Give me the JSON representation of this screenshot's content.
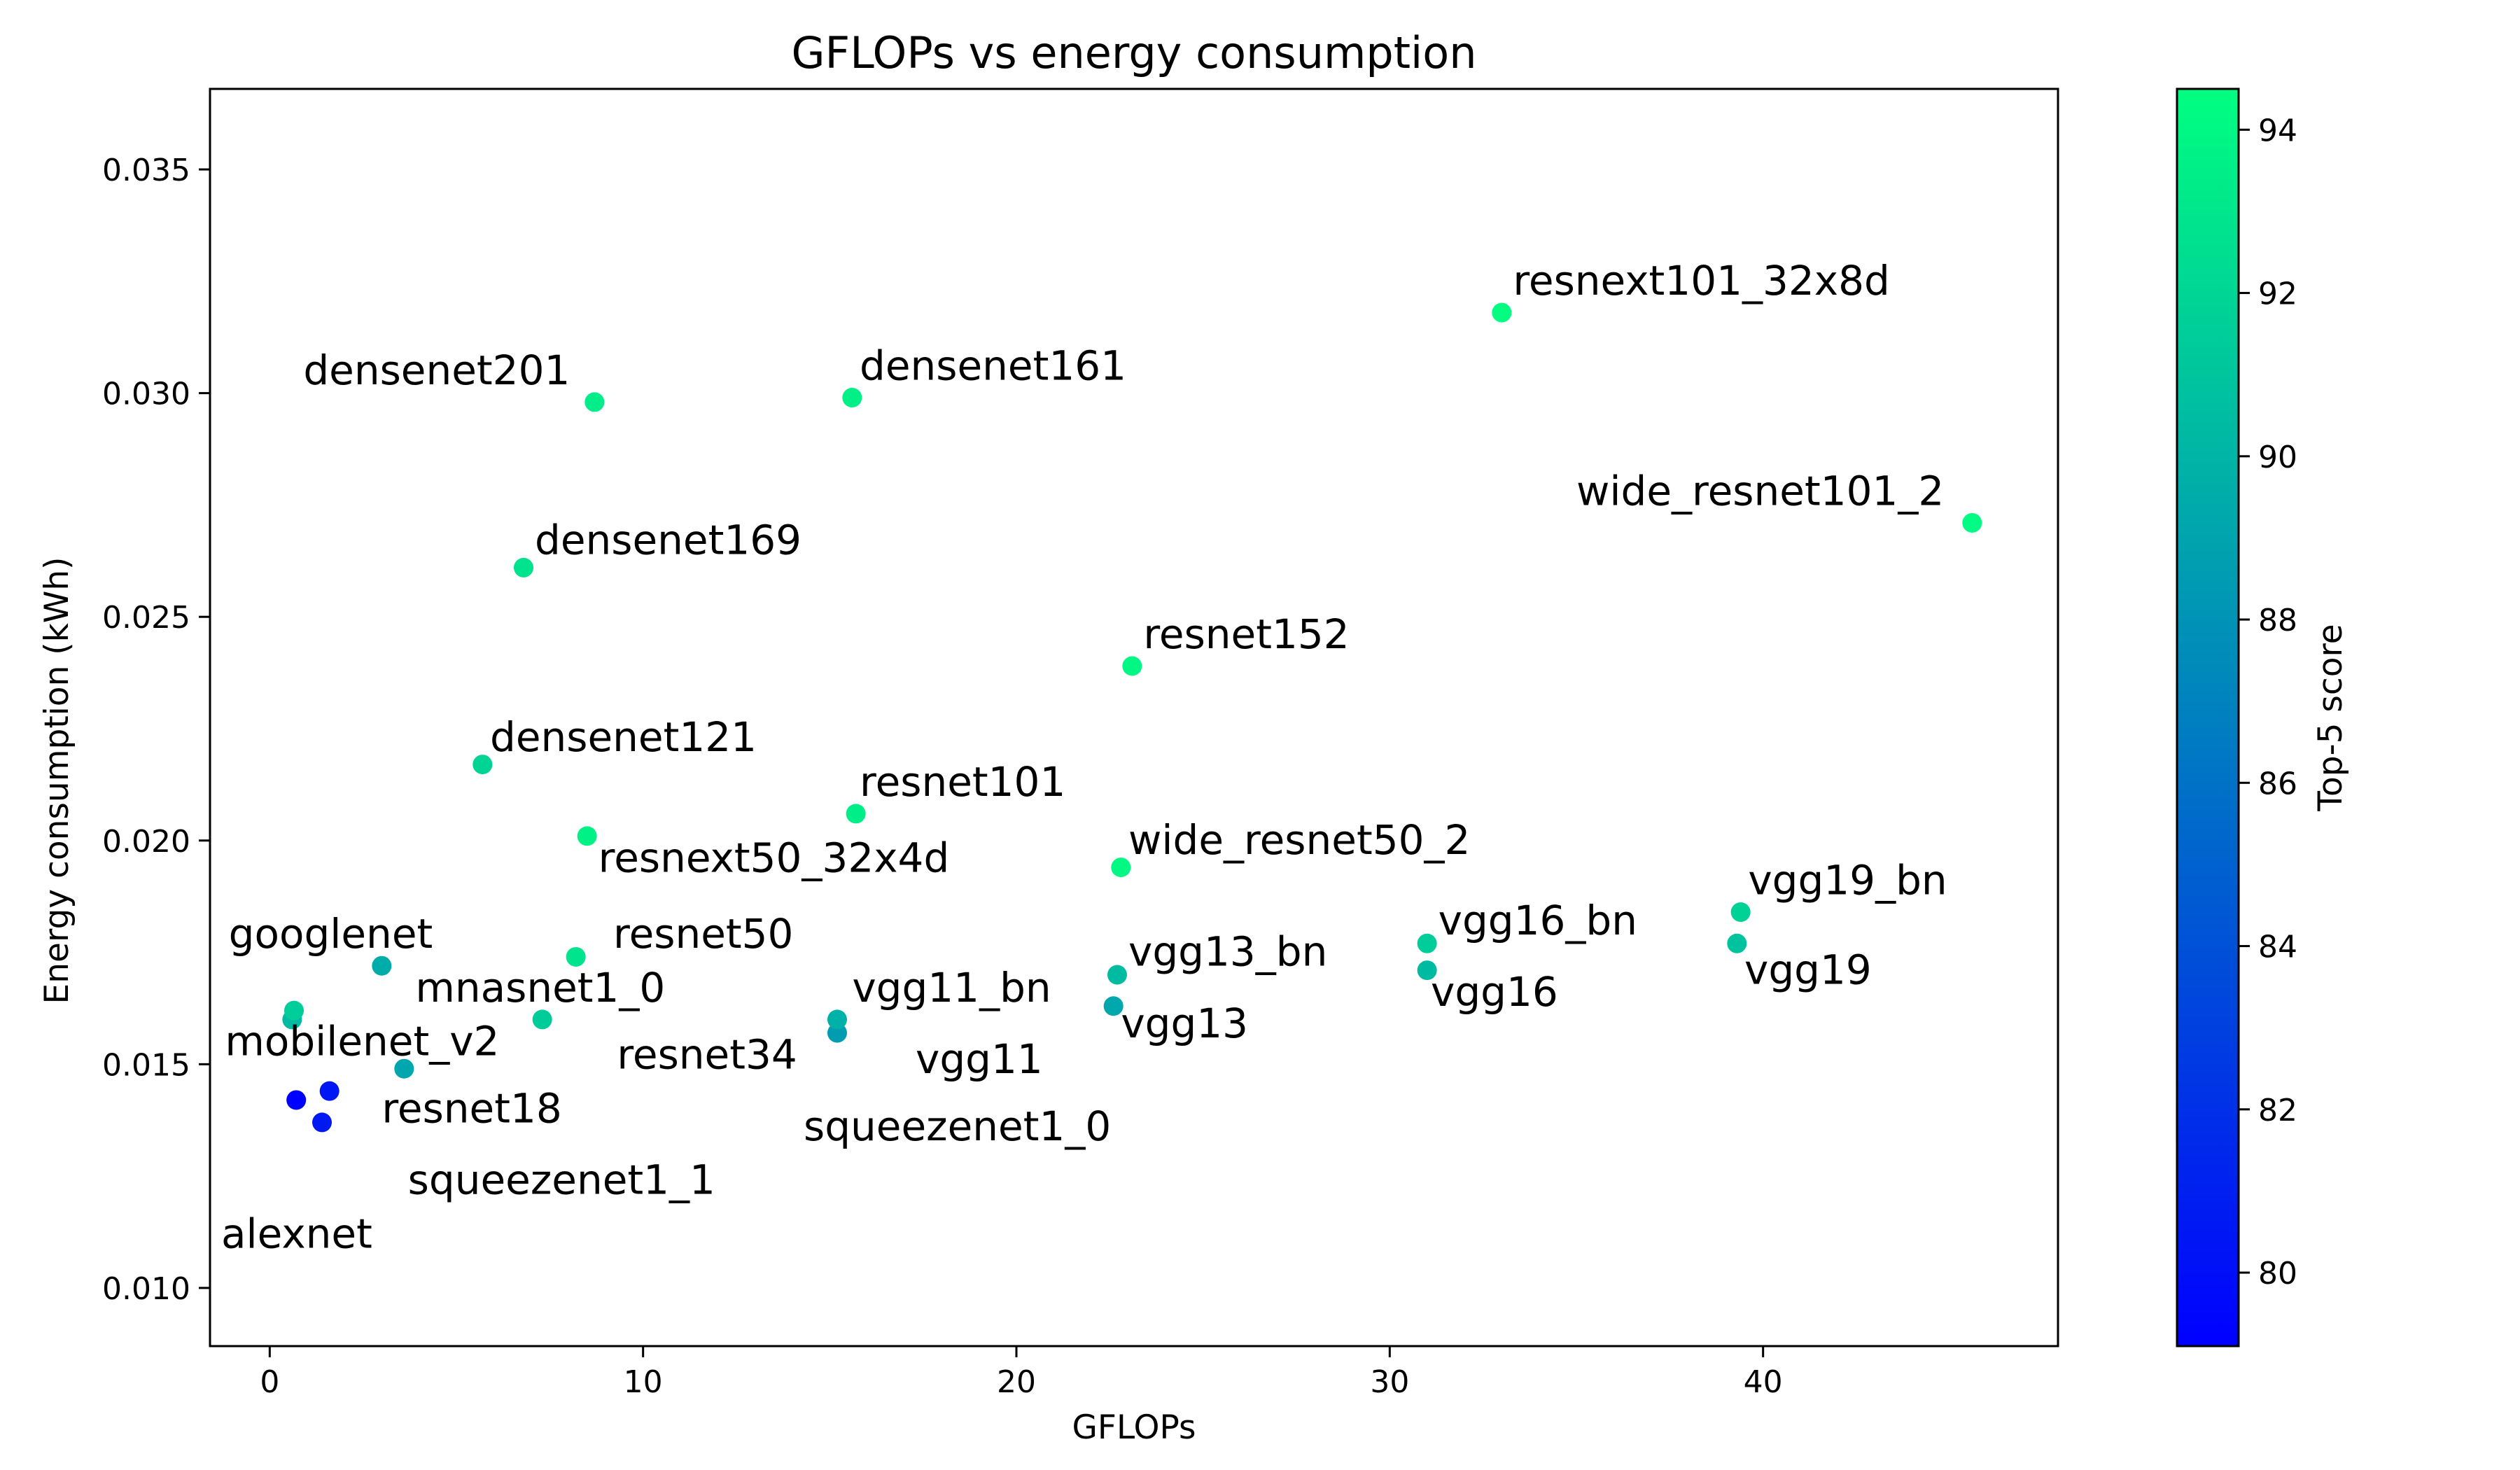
{
  "chart_data": {
    "type": "scatter",
    "title": "GFLOPs vs energy consumption",
    "xlabel": "GFLOPs",
    "ylabel": "Energy consumption (kWh)",
    "colorbar_label": "Top-5 score",
    "xlim": [
      -1.6,
      47.9
    ],
    "ylim": [
      0.0087,
      0.0368
    ],
    "xticks": [
      0,
      10,
      20,
      30,
      40
    ],
    "yticks": [
      0.01,
      0.015,
      0.02,
      0.025,
      0.03,
      0.035
    ],
    "xtick_labels": [
      "0",
      "10",
      "20",
      "30",
      "40"
    ],
    "ytick_labels": [
      "0.010",
      "0.015",
      "0.020",
      "0.025",
      "0.030",
      "0.035"
    ],
    "colorbar_range": [
      79.1,
      94.5
    ],
    "colorbar_ticks": [
      80,
      82,
      84,
      86,
      88,
      90,
      92,
      94
    ],
    "colorbar_tick_labels": [
      "80",
      "82",
      "84",
      "86",
      "88",
      "90",
      "92",
      "94"
    ],
    "colormap": [
      "#0000ff",
      "#00ff80"
    ],
    "points": [
      {
        "label": "alexnet",
        "x": 0.71,
        "y": 0.0142,
        "score": 79.1
      },
      {
        "label": "squeezenet1_1",
        "x": 1.4,
        "y": 0.0137,
        "score": 80.6
      },
      {
        "label": "squeezenet1_0",
        "x": 1.6,
        "y": 0.0144,
        "score": 80.4
      },
      {
        "label": "resnet18",
        "x": 3.6,
        "y": 0.0149,
        "score": 89.1
      },
      {
        "label": "mobilenet_v2",
        "x": 0.6,
        "y": 0.016,
        "score": 90.3
      },
      {
        "label": "mnasnet1_0",
        "x": 0.65,
        "y": 0.0162,
        "score": 91.5
      },
      {
        "label": "googlenet",
        "x": 3.0,
        "y": 0.0172,
        "score": 89.5
      },
      {
        "label": "resnet34",
        "x": 7.3,
        "y": 0.016,
        "score": 91.4
      },
      {
        "label": "resnet50",
        "x": 8.2,
        "y": 0.0174,
        "score": 92.9
      },
      {
        "label": "resnext50_32x4d",
        "x": 8.5,
        "y": 0.0201,
        "score": 93.7
      },
      {
        "label": "densenet121",
        "x": 5.7,
        "y": 0.0217,
        "score": 91.9
      },
      {
        "label": "densenet169",
        "x": 6.8,
        "y": 0.0261,
        "score": 92.8
      },
      {
        "label": "densenet201",
        "x": 8.7,
        "y": 0.0298,
        "score": 93.4
      },
      {
        "label": "densenet161",
        "x": 15.6,
        "y": 0.0299,
        "score": 93.6
      },
      {
        "label": "vgg11",
        "x": 15.2,
        "y": 0.0157,
        "score": 88.6
      },
      {
        "label": "vgg11_bn",
        "x": 15.2,
        "y": 0.016,
        "score": 89.8
      },
      {
        "label": "resnet101",
        "x": 15.7,
        "y": 0.0206,
        "score": 93.5
      },
      {
        "label": "vgg13",
        "x": 22.6,
        "y": 0.0163,
        "score": 89.2
      },
      {
        "label": "vgg13_bn",
        "x": 22.7,
        "y": 0.017,
        "score": 90.4
      },
      {
        "label": "wide_resnet50_2",
        "x": 22.8,
        "y": 0.0194,
        "score": 94.1
      },
      {
        "label": "resnet152",
        "x": 23.1,
        "y": 0.0239,
        "score": 94.0
      },
      {
        "label": "vgg16",
        "x": 31.0,
        "y": 0.0171,
        "score": 90.4
      },
      {
        "label": "vgg16_bn",
        "x": 31.0,
        "y": 0.0177,
        "score": 91.5
      },
      {
        "label": "resnext101_32x8d",
        "x": 33.0,
        "y": 0.0318,
        "score": 94.5
      },
      {
        "label": "vgg19",
        "x": 39.3,
        "y": 0.0177,
        "score": 90.9
      },
      {
        "label": "vgg19_bn",
        "x": 39.4,
        "y": 0.0184,
        "score": 91.8
      },
      {
        "label": "wide_resnet101_2",
        "x": 45.6,
        "y": 0.0271,
        "score": 94.3
      }
    ],
    "annotations": [
      {
        "text": "alexnet",
        "x": -1.3,
        "y": 0.0109
      },
      {
        "text": "squeezenet1_1",
        "x": 3.7,
        "y": 0.0121
      },
      {
        "text": "squeezenet1_0",
        "x": 14.3,
        "y": 0.0133
      },
      {
        "text": "resnet18",
        "x": 3.0,
        "y": 0.0137
      },
      {
        "text": "mobilenet_v2",
        "x": -1.2,
        "y": 0.0152
      },
      {
        "text": "mnasnet1_0",
        "x": 3.9,
        "y": 0.0164
      },
      {
        "text": "googlenet",
        "x": -1.1,
        "y": 0.0176
      },
      {
        "text": "resnet34",
        "x": 9.3,
        "y": 0.0149
      },
      {
        "text": "resnet50",
        "x": 9.2,
        "y": 0.0176
      },
      {
        "text": "resnext50_32x4d",
        "x": 8.8,
        "y": 0.0193
      },
      {
        "text": "densenet121",
        "x": 5.9,
        "y": 0.022
      },
      {
        "text": "densenet169",
        "x": 7.1,
        "y": 0.0264
      },
      {
        "text": "densenet201",
        "x": 0.9,
        "y": 0.0302
      },
      {
        "text": "densenet161",
        "x": 15.8,
        "y": 0.0303
      },
      {
        "text": "vgg11",
        "x": 17.3,
        "y": 0.0148
      },
      {
        "text": "vgg11_bn",
        "x": 15.6,
        "y": 0.0164
      },
      {
        "text": "resnet101",
        "x": 15.8,
        "y": 0.021
      },
      {
        "text": "vgg13",
        "x": 22.8,
        "y": 0.0156
      },
      {
        "text": "vgg13_bn",
        "x": 23.0,
        "y": 0.0172
      },
      {
        "text": "wide_resnet50_2",
        "x": 23.0,
        "y": 0.0197
      },
      {
        "text": "resnet152",
        "x": 23.4,
        "y": 0.0243
      },
      {
        "text": "vgg16",
        "x": 31.1,
        "y": 0.0163
      },
      {
        "text": "vgg16_bn",
        "x": 31.3,
        "y": 0.0179
      },
      {
        "text": "resnext101_32x8d",
        "x": 33.3,
        "y": 0.0322
      },
      {
        "text": "vgg19",
        "x": 39.5,
        "y": 0.0168
      },
      {
        "text": "vgg19_bn",
        "x": 39.6,
        "y": 0.0188
      },
      {
        "text": "wide_resnet101_2",
        "x": 35.0,
        "y": 0.0275
      }
    ],
    "grid": false
  }
}
